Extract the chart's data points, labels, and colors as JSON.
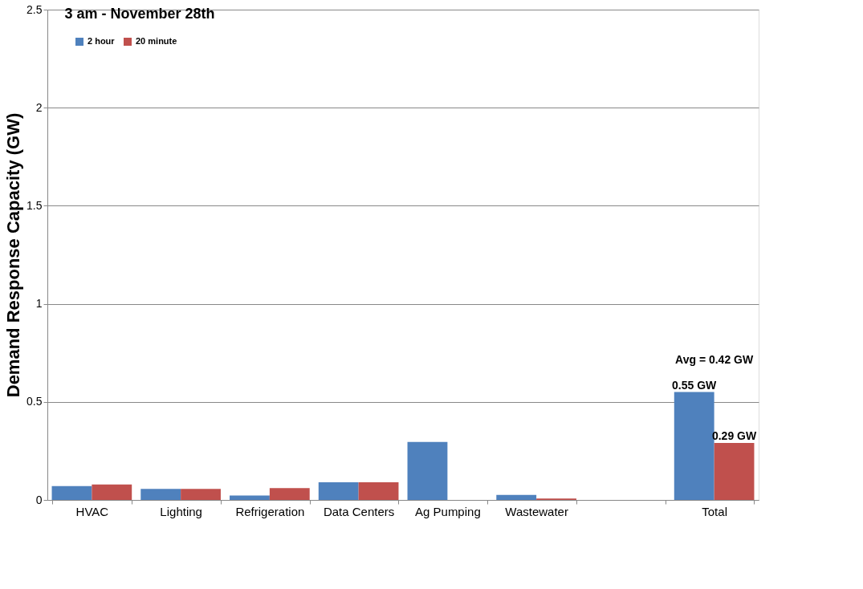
{
  "chart_data": {
    "type": "bar",
    "title": "3 am - November 28th",
    "ylabel": "Demand Response Capacity (GW)",
    "categories": [
      "HVAC",
      "Lighting",
      "Refrigeration",
      "Data Centers",
      "Ag Pumping",
      "Wastewater",
      null,
      "Total"
    ],
    "series": [
      {
        "name": "2 hour",
        "color": "#4f81bd",
        "values": [
          0.071,
          0.056,
          0.022,
          0.09,
          0.296,
          0.026,
          null,
          0.55
        ],
        "value_labels": [
          null,
          null,
          null,
          null,
          null,
          null,
          null,
          "0.55 GW"
        ]
      },
      {
        "name": "20 minute",
        "color": "#c0504d",
        "values": [
          0.079,
          0.056,
          0.06,
          0.09,
          null,
          0.007,
          null,
          0.29
        ],
        "value_labels": [
          null,
          null,
          null,
          null,
          null,
          null,
          null,
          "0.29 GW"
        ]
      }
    ],
    "ylim": [
      0,
      2.5
    ],
    "yticks": [
      0,
      0.5,
      1,
      1.5,
      2,
      2.5
    ],
    "grid": "y",
    "legend": "top left",
    "annotations": [
      "Avg = 0.42 GW"
    ]
  }
}
